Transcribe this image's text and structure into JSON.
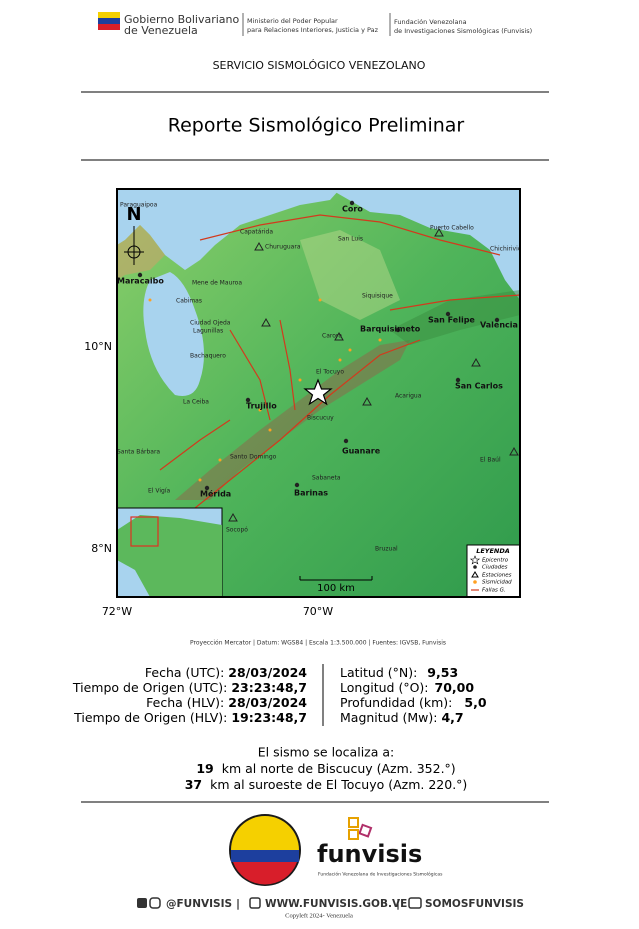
{
  "header": {
    "gov_line1": "Gobierno Bolivariano",
    "gov_line2": "de Venezuela",
    "ministry_line1": "Ministerio del Poder Popular",
    "ministry_line2": "para Relaciones Interiores, Justicia y Paz",
    "funvisis_line1": "Fundación Venezolana",
    "funvisis_line2": "de Investigaciones Sismológicas (Funvisis)",
    "service": "SERVICIO SISMOLÓGICO VENEZOLANO",
    "title": "Reporte Sismológico Preliminar"
  },
  "map": {
    "north": "N",
    "lat_labels": [
      "10°N",
      "8°N"
    ],
    "lon_labels": [
      "72°W",
      "70°W"
    ],
    "scale": "100 km",
    "legend": {
      "title": "LEYENDA",
      "items": [
        "Epicentro",
        "Ciudades",
        "Estaciones",
        "Sismicidad",
        "Fallas G."
      ]
    },
    "labels": [
      "Paraguaipoa",
      "Coro",
      "Capatárida",
      "San Luis",
      "Churuguara",
      "Maracaibo",
      "Mene de Mauroa",
      "Cabimas",
      "Siquisique",
      "Ciudad Ojeda",
      "Lagunillas",
      "Barquisimeto",
      "San Felipe",
      "Valencia",
      "Carora",
      "Bachaquero",
      "El Tocuyo",
      "San Carlos",
      "Acarigua",
      "La Ceiba",
      "Trujillo",
      "Biscucuy",
      "Guanare",
      "Santa Bárbara",
      "El Baúl",
      "Santo Domingo",
      "Mérida",
      "Barinas",
      "Sabaneta",
      "El Vigía",
      "Socopó",
      "Bruzual",
      "Puerto Cabello",
      "Chichiriviche"
    ],
    "caption": "Proyección Mercator | Datum: WGS84 | Escala 1:3.500.000 | Fuentes: IGVSB, Funvisis"
  },
  "report": {
    "left": [
      {
        "label": "Fecha (UTC):",
        "value": "28/03/2024"
      },
      {
        "label": "Tiempo de Origen (UTC):",
        "value": "23:23:48,7"
      },
      {
        "label": "Fecha (HLV):",
        "value": "28/03/2024"
      },
      {
        "label": "Tiempo de Origen (HLV):",
        "value": "19:23:48,7"
      }
    ],
    "right": [
      {
        "label": "Latitud (°N):",
        "value": "9,53"
      },
      {
        "label": "Longitud (°O):",
        "value": "70,00"
      },
      {
        "label": "Profundidad (km):",
        "value": "5,0"
      },
      {
        "label": "Magnitud (Mw):",
        "value": "4,7"
      }
    ]
  },
  "location": {
    "intro": "El sismo se localiza a:",
    "items": [
      {
        "km": "19",
        "text": "km al norte de Biscucuy (Azm. 352.°)"
      },
      {
        "km": "37",
        "text": "km al suroeste de El Tocuyo (Azm. 220.°)"
      }
    ]
  },
  "footer": {
    "logo_name": "funvisis",
    "logo_sub": "Fundación Venezolana de Investigaciones Sismológicas",
    "social1": "@FUNVISIS",
    "social2": "WWW.FUNVISIS.GOB.VE",
    "social3": "SOMOSFUNVISIS",
    "copyright": "Copyleft 2024- Venezuela"
  }
}
